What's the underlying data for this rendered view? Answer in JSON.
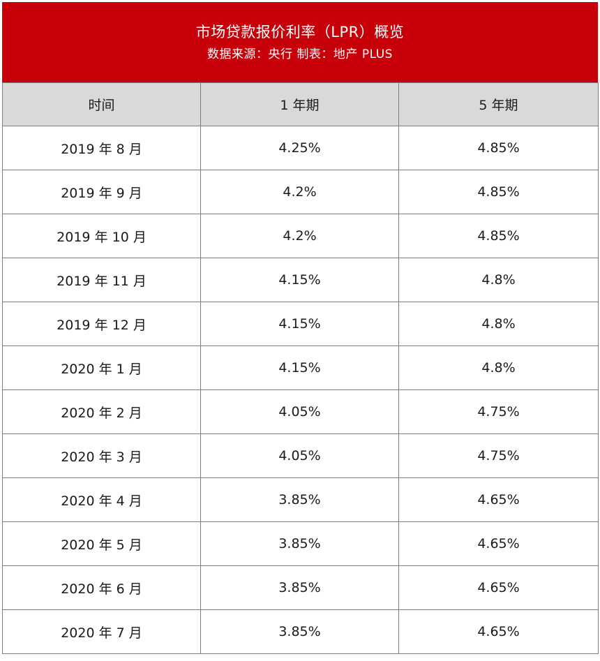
{
  "header": {
    "title": "市场贷款报价利率（LPR）概览",
    "subtitle": "数据来源：央行 制表：地产 PLUS",
    "background_color": "#c8000a"
  },
  "chart_data": {
    "type": "table",
    "columns": [
      "时间",
      "1 年期",
      "5 年期"
    ],
    "rows": [
      [
        "2019 年 8 月",
        "4.25%",
        "4.85%"
      ],
      [
        "2019 年 9 月",
        "4.2%",
        "4.85%"
      ],
      [
        "2019 年 10 月",
        "4.2%",
        "4.85%"
      ],
      [
        "2019 年 11 月",
        "4.15%",
        "4.8%"
      ],
      [
        "2019 年 12 月",
        "4.15%",
        "4.8%"
      ],
      [
        "2020 年 1 月",
        "4.15%",
        "4.8%"
      ],
      [
        "2020 年 2 月",
        "4.05%",
        "4.75%"
      ],
      [
        "2020 年 3 月",
        "4.05%",
        "4.75%"
      ],
      [
        "2020 年 4 月",
        "3.85%",
        "4.65%"
      ],
      [
        "2020 年 5 月",
        "3.85%",
        "4.65%"
      ],
      [
        "2020 年 6 月",
        "3.85%",
        "4.65%"
      ],
      [
        "2020 年 7 月",
        "3.85%",
        "4.65%"
      ]
    ]
  }
}
